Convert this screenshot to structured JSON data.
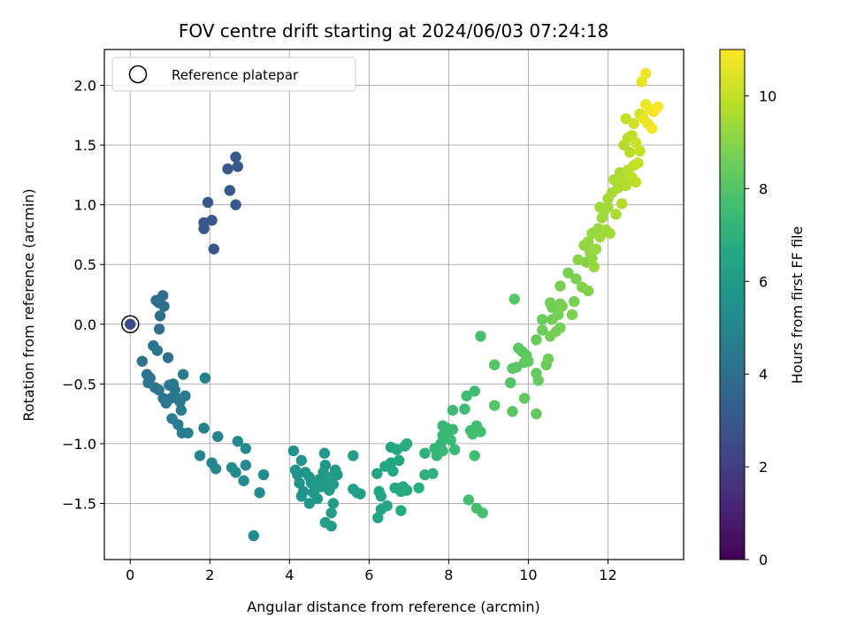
{
  "chart_data": {
    "type": "scatter",
    "title": "FOV centre drift starting at 2024/06/03 07:24:18",
    "xlabel": "Angular distance from reference (arcmin)",
    "ylabel": "Rotation from reference (arcmin)",
    "xlim": [
      -0.65,
      13.9
    ],
    "ylim": [
      -1.97,
      2.3
    ],
    "xticks": [
      0,
      2,
      4,
      6,
      8,
      10,
      12
    ],
    "yticks": [
      -1.5,
      -1.0,
      -0.5,
      0.0,
      0.5,
      1.0,
      1.5,
      2.0
    ],
    "xtick_labels": [
      "0",
      "2",
      "4",
      "6",
      "8",
      "10",
      "12"
    ],
    "ytick_labels": [
      "−1.5",
      "−1.0",
      "−0.5",
      "0.0",
      "0.5",
      "1.0",
      "1.5",
      "2.0"
    ],
    "grid": true,
    "legend": {
      "placement": "top-left",
      "entries": [
        "Reference platepar"
      ]
    },
    "reference_point": {
      "x": 0.0,
      "y": 0.0,
      "hours": 2.5
    },
    "colorbar": {
      "label": "Hours from first FF file",
      "colormap": "viridis",
      "range": [
        0,
        11
      ],
      "ticks": [
        0,
        2,
        4,
        6,
        8,
        10
      ],
      "tick_labels": [
        "0",
        "2",
        "4",
        "6",
        "8",
        "10"
      ]
    },
    "points": [
      {
        "x": 0.0,
        "y": 0.0,
        "hours": 2.5
      },
      {
        "x": 1.85,
        "y": 0.8,
        "hours": 3.0
      },
      {
        "x": 1.85,
        "y": 0.85,
        "hours": 3.0
      },
      {
        "x": 1.95,
        "y": 1.02,
        "hours": 3.0
      },
      {
        "x": 2.05,
        "y": 0.87,
        "hours": 3.0
      },
      {
        "x": 2.1,
        "y": 0.63,
        "hours": 3.0
      },
      {
        "x": 2.45,
        "y": 1.3,
        "hours": 3.0
      },
      {
        "x": 2.5,
        "y": 1.12,
        "hours": 3.0
      },
      {
        "x": 2.65,
        "y": 1.4,
        "hours": 3.0
      },
      {
        "x": 2.7,
        "y": 1.32,
        "hours": 3.0
      },
      {
        "x": 2.65,
        "y": 1.0,
        "hours": 3.0
      },
      {
        "x": 0.65,
        "y": 0.2,
        "hours": 4.0
      },
      {
        "x": 0.72,
        "y": 0.18,
        "hours": 4.0
      },
      {
        "x": 0.82,
        "y": 0.24,
        "hours": 4.0
      },
      {
        "x": 0.85,
        "y": 0.15,
        "hours": 4.0
      },
      {
        "x": 0.75,
        "y": 0.07,
        "hours": 4.0
      },
      {
        "x": 0.73,
        "y": -0.04,
        "hours": 4.0
      },
      {
        "x": 0.3,
        "y": -0.31,
        "hours": 4.2
      },
      {
        "x": 0.42,
        "y": -0.42,
        "hours": 4.2
      },
      {
        "x": 0.45,
        "y": -0.49,
        "hours": 4.2
      },
      {
        "x": 0.5,
        "y": -0.45,
        "hours": 4.2
      },
      {
        "x": 0.58,
        "y": -0.18,
        "hours": 4.2
      },
      {
        "x": 0.68,
        "y": -0.22,
        "hours": 4.2
      },
      {
        "x": 0.95,
        "y": -0.28,
        "hours": 4.2
      },
      {
        "x": 0.62,
        "y": -0.53,
        "hours": 4.3
      },
      {
        "x": 0.72,
        "y": -0.55,
        "hours": 4.3
      },
      {
        "x": 0.83,
        "y": -0.62,
        "hours": 4.3
      },
      {
        "x": 0.9,
        "y": -0.66,
        "hours": 4.3
      },
      {
        "x": 0.98,
        "y": -0.51,
        "hours": 4.3
      },
      {
        "x": 1.02,
        "y": -0.62,
        "hours": 4.4
      },
      {
        "x": 1.08,
        "y": -0.5,
        "hours": 4.4
      },
      {
        "x": 1.12,
        "y": -0.55,
        "hours": 4.4
      },
      {
        "x": 1.18,
        "y": -0.62,
        "hours": 4.4
      },
      {
        "x": 1.25,
        "y": -0.65,
        "hours": 4.5
      },
      {
        "x": 1.28,
        "y": -0.72,
        "hours": 4.5
      },
      {
        "x": 1.33,
        "y": -0.42,
        "hours": 4.5
      },
      {
        "x": 1.38,
        "y": -0.6,
        "hours": 4.5
      },
      {
        "x": 1.05,
        "y": -0.79,
        "hours": 4.6
      },
      {
        "x": 1.2,
        "y": -0.84,
        "hours": 4.6
      },
      {
        "x": 1.3,
        "y": -0.91,
        "hours": 4.6
      },
      {
        "x": 1.45,
        "y": -0.91,
        "hours": 4.6
      },
      {
        "x": 1.88,
        "y": -0.45,
        "hours": 4.8
      },
      {
        "x": 1.85,
        "y": -0.87,
        "hours": 4.8
      },
      {
        "x": 2.2,
        "y": -0.94,
        "hours": 4.9
      },
      {
        "x": 1.75,
        "y": -1.1,
        "hours": 5.0
      },
      {
        "x": 2.05,
        "y": -1.16,
        "hours": 5.0
      },
      {
        "x": 2.15,
        "y": -1.21,
        "hours": 5.0
      },
      {
        "x": 2.55,
        "y": -1.2,
        "hours": 5.1
      },
      {
        "x": 2.65,
        "y": -1.24,
        "hours": 5.1
      },
      {
        "x": 2.7,
        "y": -0.98,
        "hours": 5.1
      },
      {
        "x": 2.9,
        "y": -1.04,
        "hours": 5.2
      },
      {
        "x": 2.85,
        "y": -1.31,
        "hours": 5.2
      },
      {
        "x": 2.9,
        "y": -1.18,
        "hours": 5.2
      },
      {
        "x": 3.25,
        "y": -1.41,
        "hours": 5.3
      },
      {
        "x": 3.35,
        "y": -1.26,
        "hours": 5.3
      },
      {
        "x": 3.1,
        "y": -1.77,
        "hours": 5.3
      },
      {
        "x": 4.1,
        "y": -1.06,
        "hours": 5.6
      },
      {
        "x": 4.15,
        "y": -1.22,
        "hours": 5.6
      },
      {
        "x": 4.2,
        "y": -1.26,
        "hours": 5.6
      },
      {
        "x": 4.3,
        "y": -1.14,
        "hours": 5.6
      },
      {
        "x": 4.25,
        "y": -1.33,
        "hours": 5.7
      },
      {
        "x": 4.35,
        "y": -1.4,
        "hours": 5.7
      },
      {
        "x": 4.3,
        "y": -1.44,
        "hours": 5.7
      },
      {
        "x": 4.4,
        "y": -1.24,
        "hours": 5.7
      },
      {
        "x": 4.5,
        "y": -1.28,
        "hours": 5.8
      },
      {
        "x": 4.55,
        "y": -1.33,
        "hours": 5.8
      },
      {
        "x": 4.6,
        "y": -1.41,
        "hours": 5.8
      },
      {
        "x": 4.5,
        "y": -1.5,
        "hours": 5.8
      },
      {
        "x": 4.65,
        "y": -1.38,
        "hours": 5.8
      },
      {
        "x": 4.7,
        "y": -1.46,
        "hours": 5.9
      },
      {
        "x": 4.75,
        "y": -1.3,
        "hours": 5.9
      },
      {
        "x": 4.8,
        "y": -1.36,
        "hours": 5.9
      },
      {
        "x": 4.85,
        "y": -1.24,
        "hours": 5.9
      },
      {
        "x": 4.9,
        "y": -1.18,
        "hours": 5.9
      },
      {
        "x": 4.88,
        "y": -1.08,
        "hours": 5.9
      },
      {
        "x": 4.95,
        "y": -1.31,
        "hours": 6.0
      },
      {
        "x": 5.0,
        "y": -1.39,
        "hours": 6.0
      },
      {
        "x": 5.05,
        "y": -1.28,
        "hours": 6.0
      },
      {
        "x": 5.1,
        "y": -1.34,
        "hours": 6.0
      },
      {
        "x": 5.15,
        "y": -1.22,
        "hours": 6.0
      },
      {
        "x": 5.2,
        "y": -1.26,
        "hours": 6.0
      },
      {
        "x": 5.1,
        "y": -1.5,
        "hours": 6.1
      },
      {
        "x": 5.05,
        "y": -1.58,
        "hours": 6.1
      },
      {
        "x": 4.9,
        "y": -1.66,
        "hours": 6.1
      },
      {
        "x": 5.05,
        "y": -1.69,
        "hours": 6.1
      },
      {
        "x": 5.6,
        "y": -1.1,
        "hours": 6.2
      },
      {
        "x": 5.6,
        "y": -1.38,
        "hours": 6.2
      },
      {
        "x": 5.7,
        "y": -1.41,
        "hours": 6.2
      },
      {
        "x": 5.78,
        "y": -1.42,
        "hours": 6.2
      },
      {
        "x": 6.2,
        "y": -1.25,
        "hours": 6.4
      },
      {
        "x": 6.25,
        "y": -1.4,
        "hours": 6.4
      },
      {
        "x": 6.3,
        "y": -1.44,
        "hours": 6.4
      },
      {
        "x": 6.22,
        "y": -1.62,
        "hours": 6.4
      },
      {
        "x": 6.3,
        "y": -1.55,
        "hours": 6.4
      },
      {
        "x": 6.4,
        "y": -1.19,
        "hours": 6.5
      },
      {
        "x": 6.45,
        "y": -1.52,
        "hours": 6.5
      },
      {
        "x": 6.55,
        "y": -1.03,
        "hours": 6.5
      },
      {
        "x": 6.55,
        "y": -1.16,
        "hours": 6.5
      },
      {
        "x": 6.6,
        "y": -1.23,
        "hours": 6.6
      },
      {
        "x": 6.65,
        "y": -1.37,
        "hours": 6.6
      },
      {
        "x": 6.7,
        "y": -1.05,
        "hours": 6.6
      },
      {
        "x": 6.75,
        "y": -1.14,
        "hours": 6.6
      },
      {
        "x": 6.8,
        "y": -1.4,
        "hours": 6.7
      },
      {
        "x": 6.85,
        "y": -1.36,
        "hours": 6.7
      },
      {
        "x": 6.8,
        "y": -1.56,
        "hours": 6.7
      },
      {
        "x": 6.9,
        "y": -1.02,
        "hours": 6.7
      },
      {
        "x": 6.95,
        "y": -1.39,
        "hours": 6.8
      },
      {
        "x": 6.95,
        "y": -1.0,
        "hours": 6.8
      },
      {
        "x": 7.25,
        "y": -1.37,
        "hours": 6.9
      },
      {
        "x": 7.4,
        "y": -1.08,
        "hours": 7.1
      },
      {
        "x": 7.4,
        "y": -1.26,
        "hours": 7.1
      },
      {
        "x": 7.6,
        "y": -1.25,
        "hours": 7.1
      },
      {
        "x": 7.65,
        "y": -1.04,
        "hours": 7.2
      },
      {
        "x": 7.7,
        "y": -1.1,
        "hours": 7.2
      },
      {
        "x": 7.8,
        "y": -1.0,
        "hours": 7.2
      },
      {
        "x": 7.85,
        "y": -0.93,
        "hours": 7.3
      },
      {
        "x": 7.85,
        "y": -0.85,
        "hours": 7.3
      },
      {
        "x": 7.85,
        "y": -1.06,
        "hours": 7.3
      },
      {
        "x": 7.95,
        "y": -0.87,
        "hours": 7.3
      },
      {
        "x": 8.0,
        "y": -0.9,
        "hours": 7.4
      },
      {
        "x": 8.1,
        "y": -0.88,
        "hours": 7.4
      },
      {
        "x": 8.05,
        "y": -0.97,
        "hours": 7.4
      },
      {
        "x": 8.15,
        "y": -1.05,
        "hours": 7.4
      },
      {
        "x": 8.1,
        "y": -0.72,
        "hours": 7.5
      },
      {
        "x": 8.4,
        "y": -0.71,
        "hours": 7.5
      },
      {
        "x": 8.45,
        "y": -0.6,
        "hours": 7.5
      },
      {
        "x": 8.55,
        "y": -0.89,
        "hours": 7.6
      },
      {
        "x": 8.6,
        "y": -0.92,
        "hours": 7.6
      },
      {
        "x": 8.65,
        "y": -0.56,
        "hours": 7.6
      },
      {
        "x": 8.65,
        "y": -1.1,
        "hours": 7.6
      },
      {
        "x": 8.7,
        "y": -0.85,
        "hours": 7.7
      },
      {
        "x": 8.8,
        "y": -0.9,
        "hours": 7.7
      },
      {
        "x": 8.8,
        "y": -0.1,
        "hours": 7.7
      },
      {
        "x": 8.5,
        "y": -1.47,
        "hours": 7.7
      },
      {
        "x": 8.7,
        "y": -1.54,
        "hours": 7.7
      },
      {
        "x": 8.85,
        "y": -1.58,
        "hours": 7.7
      },
      {
        "x": 9.15,
        "y": -0.34,
        "hours": 8.0
      },
      {
        "x": 9.15,
        "y": -0.68,
        "hours": 8.0
      },
      {
        "x": 9.55,
        "y": -0.49,
        "hours": 8.0
      },
      {
        "x": 9.6,
        "y": -0.37,
        "hours": 8.1
      },
      {
        "x": 9.6,
        "y": -0.73,
        "hours": 8.1
      },
      {
        "x": 9.7,
        "y": -0.36,
        "hours": 8.1
      },
      {
        "x": 9.65,
        "y": 0.21,
        "hours": 8.1
      },
      {
        "x": 9.75,
        "y": -0.2,
        "hours": 8.2
      },
      {
        "x": 9.85,
        "y": -0.23,
        "hours": 8.2
      },
      {
        "x": 9.9,
        "y": -0.32,
        "hours": 8.2
      },
      {
        "x": 9.95,
        "y": -0.26,
        "hours": 8.2
      },
      {
        "x": 10.0,
        "y": -0.31,
        "hours": 8.3
      },
      {
        "x": 9.9,
        "y": -0.62,
        "hours": 8.3
      },
      {
        "x": 10.2,
        "y": -0.75,
        "hours": 8.3
      },
      {
        "x": 10.2,
        "y": -0.41,
        "hours": 8.4
      },
      {
        "x": 10.25,
        "y": -0.47,
        "hours": 8.4
      },
      {
        "x": 10.2,
        "y": -0.13,
        "hours": 8.4
      },
      {
        "x": 10.35,
        "y": -0.05,
        "hours": 8.5
      },
      {
        "x": 10.35,
        "y": 0.04,
        "hours": 8.5
      },
      {
        "x": 10.45,
        "y": -0.34,
        "hours": 8.5
      },
      {
        "x": 10.5,
        "y": -0.29,
        "hours": 8.6
      },
      {
        "x": 10.55,
        "y": -0.1,
        "hours": 8.6
      },
      {
        "x": 10.6,
        "y": 0.04,
        "hours": 8.6
      },
      {
        "x": 10.6,
        "y": 0.14,
        "hours": 8.6
      },
      {
        "x": 10.55,
        "y": 0.18,
        "hours": 8.6
      },
      {
        "x": 10.7,
        "y": -0.06,
        "hours": 8.7
      },
      {
        "x": 10.75,
        "y": 0.08,
        "hours": 8.7
      },
      {
        "x": 10.8,
        "y": -0.03,
        "hours": 8.7
      },
      {
        "x": 10.8,
        "y": 0.17,
        "hours": 8.7
      },
      {
        "x": 10.8,
        "y": 0.32,
        "hours": 8.7
      },
      {
        "x": 10.85,
        "y": 0.15,
        "hours": 8.8
      },
      {
        "x": 11.0,
        "y": 0.43,
        "hours": 8.8
      },
      {
        "x": 11.1,
        "y": 0.08,
        "hours": 8.8
      },
      {
        "x": 11.15,
        "y": 0.19,
        "hours": 8.8
      },
      {
        "x": 11.2,
        "y": 0.38,
        "hours": 8.8
      },
      {
        "x": 11.35,
        "y": 0.31,
        "hours": 8.9
      },
      {
        "x": 11.45,
        "y": 0.52,
        "hours": 8.9
      },
      {
        "x": 11.5,
        "y": 0.28,
        "hours": 8.9
      },
      {
        "x": 11.25,
        "y": 0.54,
        "hours": 9.1
      },
      {
        "x": 11.4,
        "y": 0.66,
        "hours": 9.2
      },
      {
        "x": 11.5,
        "y": 0.69,
        "hours": 9.2
      },
      {
        "x": 11.55,
        "y": 0.6,
        "hours": 9.2
      },
      {
        "x": 11.6,
        "y": 0.55,
        "hours": 9.2
      },
      {
        "x": 11.6,
        "y": 0.76,
        "hours": 9.3
      },
      {
        "x": 11.65,
        "y": 0.48,
        "hours": 9.3
      },
      {
        "x": 11.7,
        "y": 0.63,
        "hours": 9.3
      },
      {
        "x": 11.75,
        "y": 0.8,
        "hours": 9.3
      },
      {
        "x": 11.8,
        "y": 0.73,
        "hours": 9.4
      },
      {
        "x": 11.8,
        "y": 0.98,
        "hours": 9.4
      },
      {
        "x": 11.85,
        "y": 0.89,
        "hours": 9.4
      },
      {
        "x": 11.9,
        "y": 0.95,
        "hours": 9.4
      },
      {
        "x": 11.95,
        "y": 0.79,
        "hours": 9.4
      },
      {
        "x": 12.0,
        "y": 0.98,
        "hours": 9.5
      },
      {
        "x": 12.0,
        "y": 1.05,
        "hours": 9.5
      },
      {
        "x": 12.05,
        "y": 0.76,
        "hours": 9.5
      },
      {
        "x": 12.1,
        "y": 1.1,
        "hours": 9.5
      },
      {
        "x": 12.15,
        "y": 1.21,
        "hours": 9.6
      },
      {
        "x": 12.2,
        "y": 0.92,
        "hours": 9.6
      },
      {
        "x": 12.25,
        "y": 1.14,
        "hours": 9.6
      },
      {
        "x": 12.3,
        "y": 1.27,
        "hours": 9.6
      },
      {
        "x": 12.35,
        "y": 1.01,
        "hours": 9.7
      },
      {
        "x": 12.4,
        "y": 1.21,
        "hours": 9.7
      },
      {
        "x": 12.4,
        "y": 1.5,
        "hours": 9.7
      },
      {
        "x": 12.45,
        "y": 1.16,
        "hours": 9.7
      },
      {
        "x": 12.5,
        "y": 1.29,
        "hours": 9.8
      },
      {
        "x": 12.5,
        "y": 1.56,
        "hours": 9.8
      },
      {
        "x": 12.55,
        "y": 1.44,
        "hours": 9.8
      },
      {
        "x": 12.6,
        "y": 1.23,
        "hours": 9.9
      },
      {
        "x": 12.6,
        "y": 1.58,
        "hours": 9.9
      },
      {
        "x": 12.65,
        "y": 1.33,
        "hours": 9.9
      },
      {
        "x": 12.7,
        "y": 1.19,
        "hours": 9.9
      },
      {
        "x": 12.75,
        "y": 1.35,
        "hours": 10.0
      },
      {
        "x": 12.8,
        "y": 1.45,
        "hours": 10.0
      },
      {
        "x": 12.45,
        "y": 1.72,
        "hours": 10.0
      },
      {
        "x": 12.65,
        "y": 1.68,
        "hours": 10.2
      },
      {
        "x": 12.7,
        "y": 1.52,
        "hours": 10.2
      },
      {
        "x": 12.8,
        "y": 1.76,
        "hours": 10.3
      },
      {
        "x": 12.85,
        "y": 2.03,
        "hours": 10.6
      },
      {
        "x": 12.95,
        "y": 2.1,
        "hours": 10.7
      },
      {
        "x": 12.9,
        "y": 1.72,
        "hours": 10.6
      },
      {
        "x": 12.95,
        "y": 1.84,
        "hours": 10.7
      },
      {
        "x": 13.0,
        "y": 1.68,
        "hours": 10.7
      },
      {
        "x": 13.05,
        "y": 1.8,
        "hours": 10.8
      },
      {
        "x": 13.1,
        "y": 1.64,
        "hours": 10.8
      },
      {
        "x": 13.15,
        "y": 1.78,
        "hours": 10.8
      },
      {
        "x": 13.25,
        "y": 1.82,
        "hours": 10.9
      }
    ]
  }
}
